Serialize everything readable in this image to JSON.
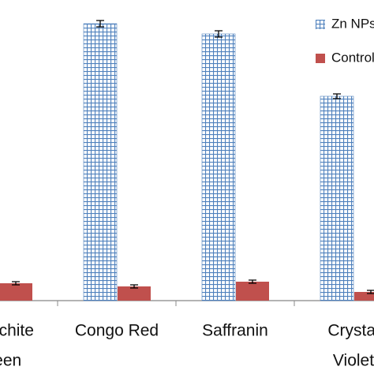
{
  "chart_data": {
    "type": "bar",
    "categories": [
      [
        "Malachite",
        "Green"
      ],
      [
        "Congo Red"
      ],
      [
        "Saffranin"
      ],
      [
        "Crystal",
        "Violet"
      ]
    ],
    "series": [
      {
        "name": "Zn NPs",
        "color": "#4f81bd",
        "values": [
          null,
          351,
          338,
          259
        ],
        "errors": [
          null,
          4,
          4,
          3
        ]
      },
      {
        "name": "Control",
        "color": "#c0504d",
        "values": [
          22,
          18,
          24,
          11
        ],
        "errors": [
          2,
          2,
          2,
          2
        ]
      }
    ],
    "ylim": [
      0,
      360
    ]
  }
}
